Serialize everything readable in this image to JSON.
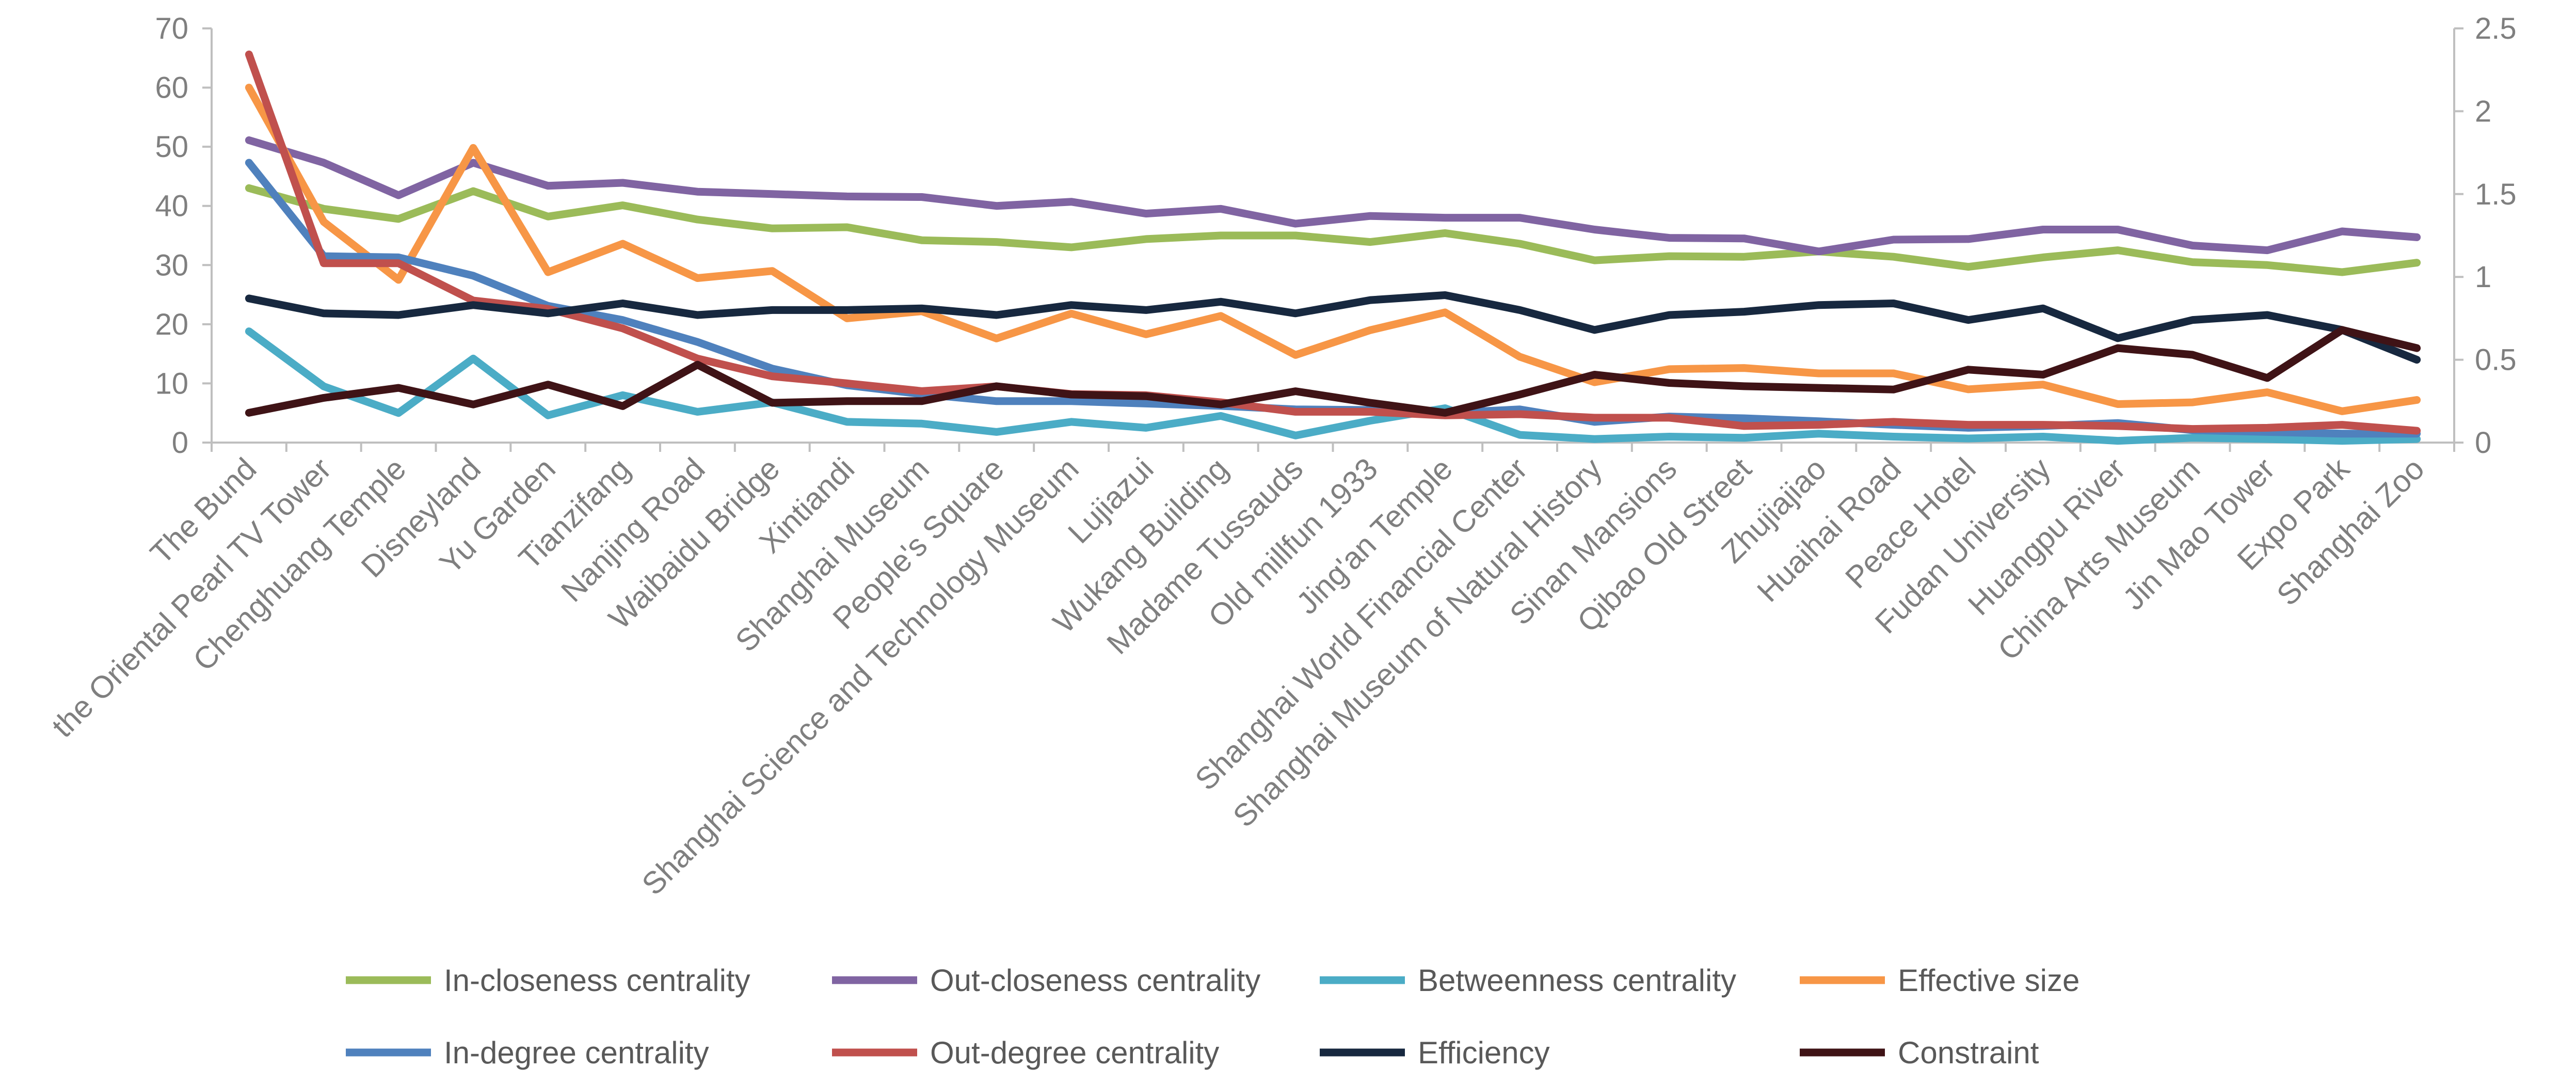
{
  "chart_data": {
    "type": "line",
    "title": "",
    "xlabel": "",
    "ylabel": "",
    "categories": [
      "The Bund",
      "the Oriental Pearl TV Tower",
      "Chenghuang Temple",
      "Disneyland",
      "Yu Garden",
      "Tianzifang",
      "Nanjing Road",
      "Waibaidu Bridge",
      "Xintiandi",
      "Shanghai Museum",
      "People's Square",
      "Shanghai Science and Technology Museum",
      "Lujiazui",
      "Wukang Building",
      "Madame Tussauds",
      "Old millfun 1933",
      "Jing'an Temple",
      "Shanghai World Financial Center",
      "Shanghai Museum of Natural History",
      "Sinan Mansions",
      "Qibao Old Street",
      "Zhujiajiao",
      "Huaihai Road",
      "Peace Hotel",
      "Fudan University",
      "Huangpu River",
      "China Arts Museum",
      "Jin Mao Tower",
      "Expo Park",
      "Shanghai Zoo"
    ],
    "y_left": {
      "min": 0,
      "max": 70,
      "ticks": [
        "0",
        "10",
        "20",
        "30",
        "40",
        "50",
        "60",
        "70"
      ]
    },
    "y_right": {
      "min": 0,
      "max": 2.5,
      "ticks": [
        "0",
        "0.5",
        "1",
        "1.5",
        "2",
        "2.5"
      ]
    },
    "grid": false,
    "legend_position": "bottom",
    "series": [
      {
        "name": "In-closeness centrality",
        "axis": "left",
        "color": "#9bbb59",
        "values": [
          43,
          39.5,
          37.8,
          42.5,
          38.2,
          40.1,
          37.7,
          36.2,
          36.4,
          34.2,
          33.9,
          33,
          34.4,
          35,
          35,
          33.9,
          35.4,
          33.6,
          30.8,
          31.5,
          31.4,
          32.3,
          31.4,
          29.7,
          31.3,
          32.5,
          30.5,
          30,
          28.8,
          30.4
        ]
      },
      {
        "name": "Out-closeness centrality",
        "axis": "left",
        "color": "#8064a2",
        "values": [
          51.1,
          47.3,
          41.8,
          47.3,
          43.4,
          43.9,
          42.4,
          42,
          41.6,
          41.5,
          40,
          40.7,
          38.7,
          39.5,
          37,
          38.3,
          38,
          38,
          36,
          34.6,
          34.5,
          32.3,
          34.3,
          34.4,
          36,
          36,
          33.3,
          32.5,
          35.7,
          34.7
        ]
      },
      {
        "name": "Betweenness centrality",
        "axis": "left",
        "color": "#4bacc6",
        "values": [
          18.8,
          9.5,
          5,
          14.2,
          4.6,
          8,
          5.2,
          6.8,
          3.5,
          3.2,
          1.8,
          3.5,
          2.5,
          4.5,
          1.2,
          3.7,
          5.8,
          1.3,
          0.6,
          1,
          0.8,
          1.5,
          1,
          0.7,
          1,
          0.3,
          0.8,
          0.6,
          0.3,
          0.6
        ]
      },
      {
        "name": "Effective size",
        "axis": "left",
        "color": "#f79646",
        "values": [
          60,
          37.3,
          27.5,
          49.8,
          28.8,
          33.6,
          27.8,
          29,
          21,
          22.2,
          17.6,
          21.8,
          18.3,
          21.4,
          14.8,
          19,
          22,
          14.5,
          10.2,
          12.4,
          12.6,
          11.7,
          11.7,
          9,
          9.8,
          6.5,
          6.8,
          8.5,
          5.3,
          7.2
        ]
      },
      {
        "name": "In-degree centrality",
        "axis": "left",
        "color": "#4f81bd",
        "values": [
          47.3,
          31.5,
          31.3,
          28.2,
          23.1,
          20.7,
          17,
          12.5,
          9.7,
          8.2,
          7,
          7,
          6.6,
          6.2,
          5.6,
          5.5,
          5,
          5.6,
          3.5,
          4.4,
          4.1,
          3.6,
          3,
          2.5,
          2.8,
          3.3,
          2.1,
          1.8,
          1.5,
          1.5
        ]
      },
      {
        "name": "Out-degree centrality",
        "axis": "left",
        "color": "#c0504d",
        "values": [
          65.6,
          30.3,
          30.3,
          24,
          22.6,
          19.3,
          14.2,
          11.2,
          10,
          8.7,
          9.5,
          8.2,
          8,
          6.8,
          5.2,
          5.2,
          4.6,
          4.8,
          4.2,
          4.2,
          2.8,
          3,
          3.5,
          3,
          3,
          2.8,
          2.3,
          2.5,
          3,
          2
        ]
      },
      {
        "name": "Efficiency",
        "axis": "right",
        "color": "#17283f",
        "values": [
          0.87,
          0.78,
          0.77,
          0.83,
          0.78,
          0.84,
          0.77,
          0.8,
          0.8,
          0.81,
          0.77,
          0.83,
          0.8,
          0.85,
          0.78,
          0.86,
          0.89,
          0.8,
          0.68,
          0.77,
          0.79,
          0.83,
          0.84,
          0.74,
          0.81,
          0.63,
          0.74,
          0.77,
          0.68,
          0.5
        ]
      },
      {
        "name": "Constraint",
        "axis": "right",
        "color": "#3f1316",
        "values": [
          0.18,
          0.27,
          0.33,
          0.23,
          0.35,
          0.22,
          0.47,
          0.24,
          0.25,
          0.25,
          0.34,
          0.29,
          0.28,
          0.23,
          0.31,
          0.24,
          0.18,
          0.29,
          0.41,
          0.36,
          0.34,
          0.33,
          0.32,
          0.44,
          0.41,
          0.57,
          0.53,
          0.39,
          0.68,
          0.57
        ]
      }
    ]
  }
}
